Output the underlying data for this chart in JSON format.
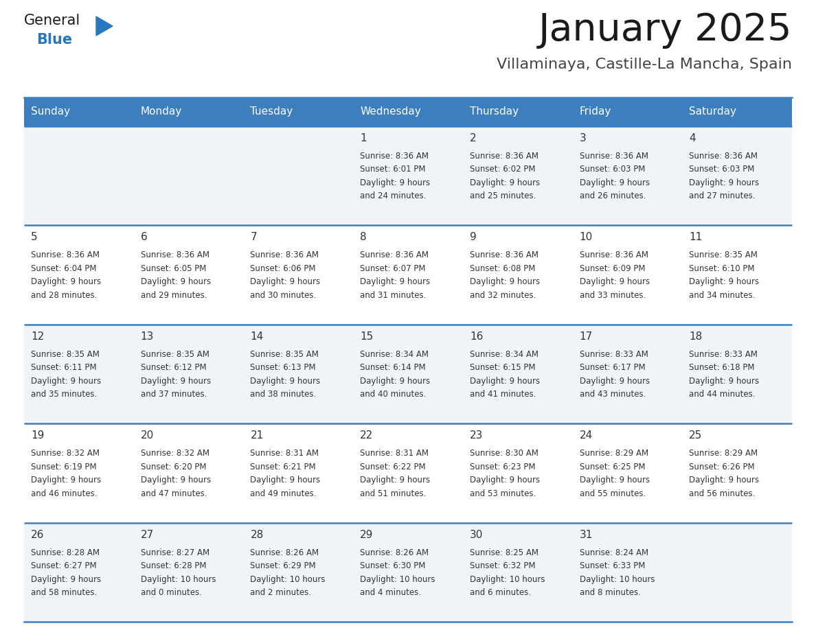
{
  "title": "January 2025",
  "subtitle": "Villaminaya, Castille-La Mancha, Spain",
  "days_of_week": [
    "Sunday",
    "Monday",
    "Tuesday",
    "Wednesday",
    "Thursday",
    "Friday",
    "Saturday"
  ],
  "header_bg": "#3d7ebf",
  "header_text": "#ffffff",
  "row_bg_odd": "#f0f4f8",
  "row_bg_even": "#ffffff",
  "cell_text": "#333333",
  "divider_color": "#3d7ebf",
  "title_color": "#1a1a1a",
  "subtitle_color": "#444444",
  "logo_general_color": "#1a1a1a",
  "logo_blue_color": "#2878c0",
  "calendar_data": [
    [
      {
        "day": null,
        "sunrise": null,
        "sunset": null,
        "daylight": null
      },
      {
        "day": null,
        "sunrise": null,
        "sunset": null,
        "daylight": null
      },
      {
        "day": null,
        "sunrise": null,
        "sunset": null,
        "daylight": null
      },
      {
        "day": 1,
        "sunrise": "8:36 AM",
        "sunset": "6:01 PM",
        "daylight": "9 hours\nand 24 minutes."
      },
      {
        "day": 2,
        "sunrise": "8:36 AM",
        "sunset": "6:02 PM",
        "daylight": "9 hours\nand 25 minutes."
      },
      {
        "day": 3,
        "sunrise": "8:36 AM",
        "sunset": "6:03 PM",
        "daylight": "9 hours\nand 26 minutes."
      },
      {
        "day": 4,
        "sunrise": "8:36 AM",
        "sunset": "6:03 PM",
        "daylight": "9 hours\nand 27 minutes."
      }
    ],
    [
      {
        "day": 5,
        "sunrise": "8:36 AM",
        "sunset": "6:04 PM",
        "daylight": "9 hours\nand 28 minutes."
      },
      {
        "day": 6,
        "sunrise": "8:36 AM",
        "sunset": "6:05 PM",
        "daylight": "9 hours\nand 29 minutes."
      },
      {
        "day": 7,
        "sunrise": "8:36 AM",
        "sunset": "6:06 PM",
        "daylight": "9 hours\nand 30 minutes."
      },
      {
        "day": 8,
        "sunrise": "8:36 AM",
        "sunset": "6:07 PM",
        "daylight": "9 hours\nand 31 minutes."
      },
      {
        "day": 9,
        "sunrise": "8:36 AM",
        "sunset": "6:08 PM",
        "daylight": "9 hours\nand 32 minutes."
      },
      {
        "day": 10,
        "sunrise": "8:36 AM",
        "sunset": "6:09 PM",
        "daylight": "9 hours\nand 33 minutes."
      },
      {
        "day": 11,
        "sunrise": "8:35 AM",
        "sunset": "6:10 PM",
        "daylight": "9 hours\nand 34 minutes."
      }
    ],
    [
      {
        "day": 12,
        "sunrise": "8:35 AM",
        "sunset": "6:11 PM",
        "daylight": "9 hours\nand 35 minutes."
      },
      {
        "day": 13,
        "sunrise": "8:35 AM",
        "sunset": "6:12 PM",
        "daylight": "9 hours\nand 37 minutes."
      },
      {
        "day": 14,
        "sunrise": "8:35 AM",
        "sunset": "6:13 PM",
        "daylight": "9 hours\nand 38 minutes."
      },
      {
        "day": 15,
        "sunrise": "8:34 AM",
        "sunset": "6:14 PM",
        "daylight": "9 hours\nand 40 minutes."
      },
      {
        "day": 16,
        "sunrise": "8:34 AM",
        "sunset": "6:15 PM",
        "daylight": "9 hours\nand 41 minutes."
      },
      {
        "day": 17,
        "sunrise": "8:33 AM",
        "sunset": "6:17 PM",
        "daylight": "9 hours\nand 43 minutes."
      },
      {
        "day": 18,
        "sunrise": "8:33 AM",
        "sunset": "6:18 PM",
        "daylight": "9 hours\nand 44 minutes."
      }
    ],
    [
      {
        "day": 19,
        "sunrise": "8:32 AM",
        "sunset": "6:19 PM",
        "daylight": "9 hours\nand 46 minutes."
      },
      {
        "day": 20,
        "sunrise": "8:32 AM",
        "sunset": "6:20 PM",
        "daylight": "9 hours\nand 47 minutes."
      },
      {
        "day": 21,
        "sunrise": "8:31 AM",
        "sunset": "6:21 PM",
        "daylight": "9 hours\nand 49 minutes."
      },
      {
        "day": 22,
        "sunrise": "8:31 AM",
        "sunset": "6:22 PM",
        "daylight": "9 hours\nand 51 minutes."
      },
      {
        "day": 23,
        "sunrise": "8:30 AM",
        "sunset": "6:23 PM",
        "daylight": "9 hours\nand 53 minutes."
      },
      {
        "day": 24,
        "sunrise": "8:29 AM",
        "sunset": "6:25 PM",
        "daylight": "9 hours\nand 55 minutes."
      },
      {
        "day": 25,
        "sunrise": "8:29 AM",
        "sunset": "6:26 PM",
        "daylight": "9 hours\nand 56 minutes."
      }
    ],
    [
      {
        "day": 26,
        "sunrise": "8:28 AM",
        "sunset": "6:27 PM",
        "daylight": "9 hours\nand 58 minutes."
      },
      {
        "day": 27,
        "sunrise": "8:27 AM",
        "sunset": "6:28 PM",
        "daylight": "10 hours\nand 0 minutes."
      },
      {
        "day": 28,
        "sunrise": "8:26 AM",
        "sunset": "6:29 PM",
        "daylight": "10 hours\nand 2 minutes."
      },
      {
        "day": 29,
        "sunrise": "8:26 AM",
        "sunset": "6:30 PM",
        "daylight": "10 hours\nand 4 minutes."
      },
      {
        "day": 30,
        "sunrise": "8:25 AM",
        "sunset": "6:32 PM",
        "daylight": "10 hours\nand 6 minutes."
      },
      {
        "day": 31,
        "sunrise": "8:24 AM",
        "sunset": "6:33 PM",
        "daylight": "10 hours\nand 8 minutes."
      },
      {
        "day": null,
        "sunrise": null,
        "sunset": null,
        "daylight": null
      }
    ]
  ]
}
